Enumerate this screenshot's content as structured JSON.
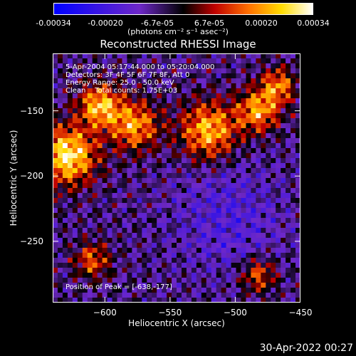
{
  "colorbar": {
    "ticks": [
      "-0.00034",
      "-0.00020",
      "-6.7e-05",
      "6.7e-05",
      "0.00020",
      "0.00034"
    ],
    "units": "(photons cm⁻² s⁻¹ asec⁻²)"
  },
  "chart_data": {
    "type": "heatmap",
    "title": "Reconstructed RHESSI Image",
    "xlabel": "Heliocentric X (arcsec)",
    "ylabel": "Heliocentric Y (arcsec)",
    "xlim": [
      -640,
      -450
    ],
    "ylim": [
      -297,
      -106
    ],
    "x_ticks": [
      -600,
      -550,
      -500,
      -450
    ],
    "y_ticks": [
      -150,
      -200,
      -250
    ],
    "color_range": [
      -0.00034,
      0.00034
    ],
    "annotations": [
      "5-Apr-2004 05:17:44.000 to 05:20:04.000",
      "Detectors: 3F 4F 5F 6F 7F 8F, Att 0",
      "Energy Range: 25.0 - 50.0 keV",
      "Clean    Total counts: 1.75E+03"
    ],
    "peak_label": "Position of Peak = [-638,-177]",
    "peak_x": -638,
    "peak_y": -177
  },
  "timestamp": "30-Apr-2022 00:27"
}
